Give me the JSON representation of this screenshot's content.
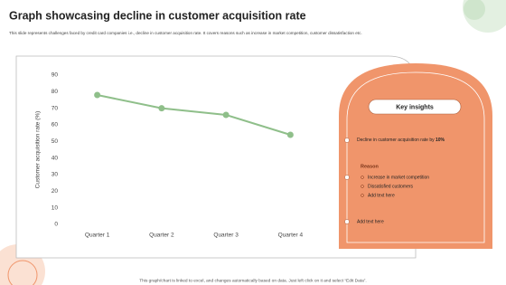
{
  "title": "Graph showcasing decline in customer acquisition rate",
  "subtitle": "This slide represents challenges faced by credit card companies i.e., decline in customer acquisition rate. It covers reasons such as increase in market competition, customer dissatisfaction etc.",
  "chart_data": {
    "type": "line",
    "y_label": "Customer acquisition rate (%)",
    "categories": [
      "Quarter 1",
      "Quarter 2",
      "Quarter 3",
      "Quarter 4"
    ],
    "values": [
      78,
      70,
      66,
      54
    ],
    "color": "#8fbf8a",
    "ylim": [
      0,
      90
    ],
    "yticks": [
      0,
      10,
      20,
      30,
      40,
      50,
      60,
      70,
      80,
      90
    ]
  },
  "insights": {
    "heading": "Key insights",
    "first": {
      "text": "Decline in customer acquisition rate by",
      "bold": "10%"
    },
    "reason": {
      "heading": "Reason",
      "items": [
        "Increase in market competition",
        "Dissatisfied customers",
        "Add text here"
      ]
    },
    "last": "Add text here"
  },
  "footer": "This graph/chart is linked to excel, and changes automatically based on data. Just left click on it and select “Edit Data”."
}
